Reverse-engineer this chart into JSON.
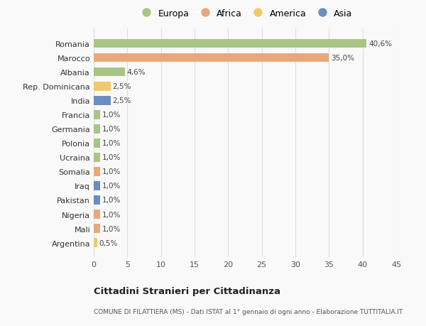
{
  "countries": [
    "Romania",
    "Marocco",
    "Albania",
    "Rep. Dominicana",
    "India",
    "Francia",
    "Germania",
    "Polonia",
    "Ucraina",
    "Somalia",
    "Iraq",
    "Pakistan",
    "Nigeria",
    "Mali",
    "Argentina"
  ],
  "values": [
    40.6,
    35.0,
    4.6,
    2.5,
    2.5,
    1.0,
    1.0,
    1.0,
    1.0,
    1.0,
    1.0,
    1.0,
    1.0,
    1.0,
    0.5
  ],
  "labels": [
    "40,6%",
    "35,0%",
    "4,6%",
    "2,5%",
    "2,5%",
    "1,0%",
    "1,0%",
    "1,0%",
    "1,0%",
    "1,0%",
    "1,0%",
    "1,0%",
    "1,0%",
    "1,0%",
    "0,5%"
  ],
  "continents": [
    "Europa",
    "Africa",
    "Europa",
    "America",
    "Asia",
    "Europa",
    "Europa",
    "Europa",
    "Europa",
    "Africa",
    "Asia",
    "Asia",
    "Africa",
    "Africa",
    "America"
  ],
  "colors": {
    "Europa": "#a8c585",
    "Africa": "#e8a87c",
    "America": "#f0c96e",
    "Asia": "#6b8ec0"
  },
  "legend_order": [
    "Europa",
    "Africa",
    "America",
    "Asia"
  ],
  "xlim": [
    0,
    45
  ],
  "xticks": [
    0,
    5,
    10,
    15,
    20,
    25,
    30,
    35,
    40,
    45
  ],
  "title": "Cittadini Stranieri per Cittadinanza",
  "subtitle": "COMUNE DI FILATTIERA (MS) - Dati ISTAT al 1° gennaio di ogni anno - Elaborazione TUTTITALIA.IT",
  "bg_color": "#f9f9f9",
  "grid_color": "#dddddd",
  "bar_height": 0.62
}
